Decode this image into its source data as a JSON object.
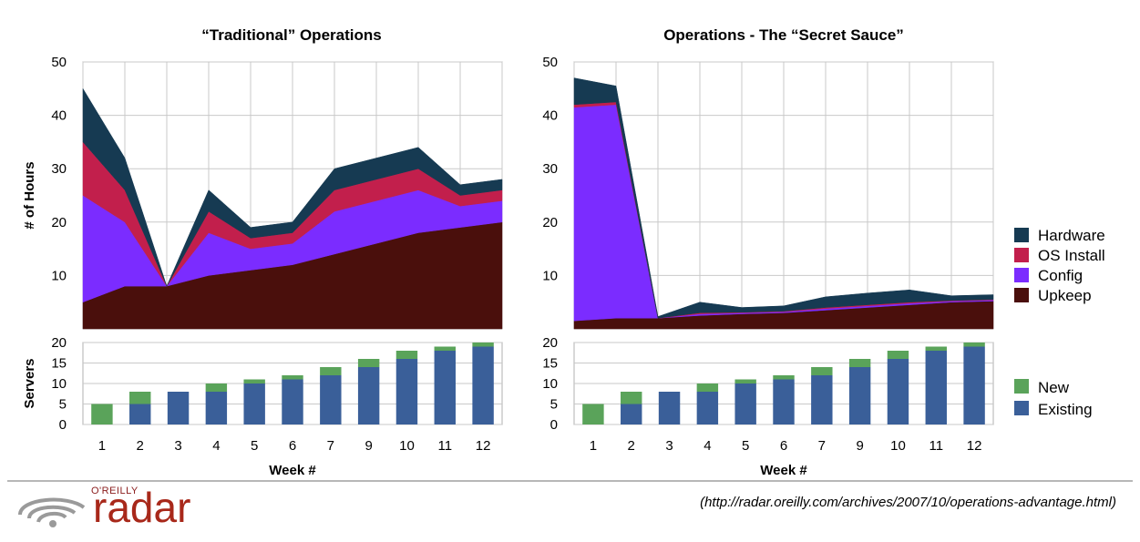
{
  "chart_data": [
    {
      "type": "area",
      "stacked": true,
      "title": "“Traditional” Operations",
      "ylabel": "# of Hours",
      "xlabel": "",
      "x": [
        "1",
        "2",
        "3",
        "4",
        "5",
        "6",
        "7",
        "9",
        "10",
        "11",
        "12"
      ],
      "ylim": [
        0,
        50
      ],
      "yticks": [
        10,
        20,
        30,
        40,
        50
      ],
      "grid": true,
      "series": [
        {
          "name": "Upkeep",
          "color": "#4a0f0c",
          "values": [
            5,
            8,
            8,
            10,
            11,
            12,
            14,
            16,
            18,
            19,
            20
          ]
        },
        {
          "name": "Config",
          "color": "#7b2cff",
          "values": [
            20,
            12,
            0,
            8,
            4,
            4,
            8,
            8,
            8,
            4,
            4
          ]
        },
        {
          "name": "OS Install",
          "color": "#c21f4c",
          "values": [
            10,
            6,
            0,
            4,
            2,
            2,
            4,
            4,
            4,
            2,
            2
          ]
        },
        {
          "name": "Hardware",
          "color": "#163a52",
          "values": [
            10,
            6,
            0,
            4,
            2,
            2,
            4,
            4,
            4,
            2,
            2
          ]
        }
      ]
    },
    {
      "type": "bar",
      "stacked": true,
      "ylabel": "Servers",
      "xlabel": "Week #",
      "categories": [
        "1",
        "2",
        "3",
        "4",
        "5",
        "6",
        "7",
        "9",
        "10",
        "11",
        "12"
      ],
      "ylim": [
        0,
        20
      ],
      "yticks": [
        0,
        5,
        10,
        15,
        20
      ],
      "grid": true,
      "series": [
        {
          "name": "Existing",
          "color": "#3a5f99",
          "values": [
            0,
            5,
            8,
            8,
            10,
            11,
            12,
            14,
            16,
            18,
            19
          ]
        },
        {
          "name": "New",
          "color": "#5aa35a",
          "values": [
            5,
            3,
            0,
            2,
            1,
            1,
            2,
            2,
            2,
            1,
            1
          ]
        }
      ]
    },
    {
      "type": "area",
      "stacked": true,
      "title": "Operations - The “Secret Sauce”",
      "ylabel": "",
      "xlabel": "",
      "x": [
        "1",
        "2",
        "3",
        "4",
        "5",
        "6",
        "7",
        "9",
        "10",
        "11",
        "12"
      ],
      "ylim": [
        0,
        50
      ],
      "yticks": [
        10,
        20,
        30,
        40,
        50
      ],
      "grid": true,
      "series": [
        {
          "name": "Upkeep",
          "color": "#4a0f0c",
          "values": [
            1.5,
            2,
            2,
            2.5,
            2.8,
            3,
            3.5,
            4,
            4.5,
            5,
            5.2
          ]
        },
        {
          "name": "Config",
          "color": "#7b2cff",
          "values": [
            40,
            40,
            0,
            0.3,
            0.2,
            0.2,
            0.3,
            0.3,
            0.3,
            0.2,
            0.2
          ]
        },
        {
          "name": "OS Install",
          "color": "#c21f4c",
          "values": [
            0.5,
            0.5,
            0,
            0.2,
            0.1,
            0.1,
            0.2,
            0.2,
            0.2,
            0.1,
            0.1
          ]
        },
        {
          "name": "Hardware",
          "color": "#163a52",
          "values": [
            5,
            3,
            0.3,
            2,
            0.9,
            1,
            2,
            2.2,
            2.3,
            0.9,
            0.9
          ]
        }
      ]
    },
    {
      "type": "bar",
      "stacked": true,
      "ylabel": "",
      "xlabel": "Week #",
      "categories": [
        "1",
        "2",
        "3",
        "4",
        "5",
        "6",
        "7",
        "9",
        "10",
        "11",
        "12"
      ],
      "ylim": [
        0,
        20
      ],
      "yticks": [
        0,
        5,
        10,
        15,
        20
      ],
      "grid": true,
      "series": [
        {
          "name": "Existing",
          "color": "#3a5f99",
          "values": [
            0,
            5,
            8,
            8,
            10,
            11,
            12,
            14,
            16,
            18,
            19
          ]
        },
        {
          "name": "New",
          "color": "#5aa35a",
          "values": [
            5,
            3,
            0,
            2,
            1,
            1,
            2,
            2,
            2,
            1,
            1
          ]
        }
      ]
    }
  ],
  "legends": {
    "hours": [
      "Hardware",
      "OS Install",
      "Config",
      "Upkeep"
    ],
    "servers": [
      "New",
      "Existing"
    ]
  },
  "footer": {
    "publisher": "O'REILLY",
    "brand": "radar",
    "url": "(http://radar.oreilly.com/archives/2007/10/operations-advantage.html)"
  },
  "colors": {
    "hardware": "#163a52",
    "os_install": "#c21f4c",
    "config": "#7b2cff",
    "upkeep": "#4a0f0c",
    "new": "#5aa35a",
    "existing": "#3a5f99",
    "grid": "#c9c9c9",
    "brand": "#a8281a"
  }
}
